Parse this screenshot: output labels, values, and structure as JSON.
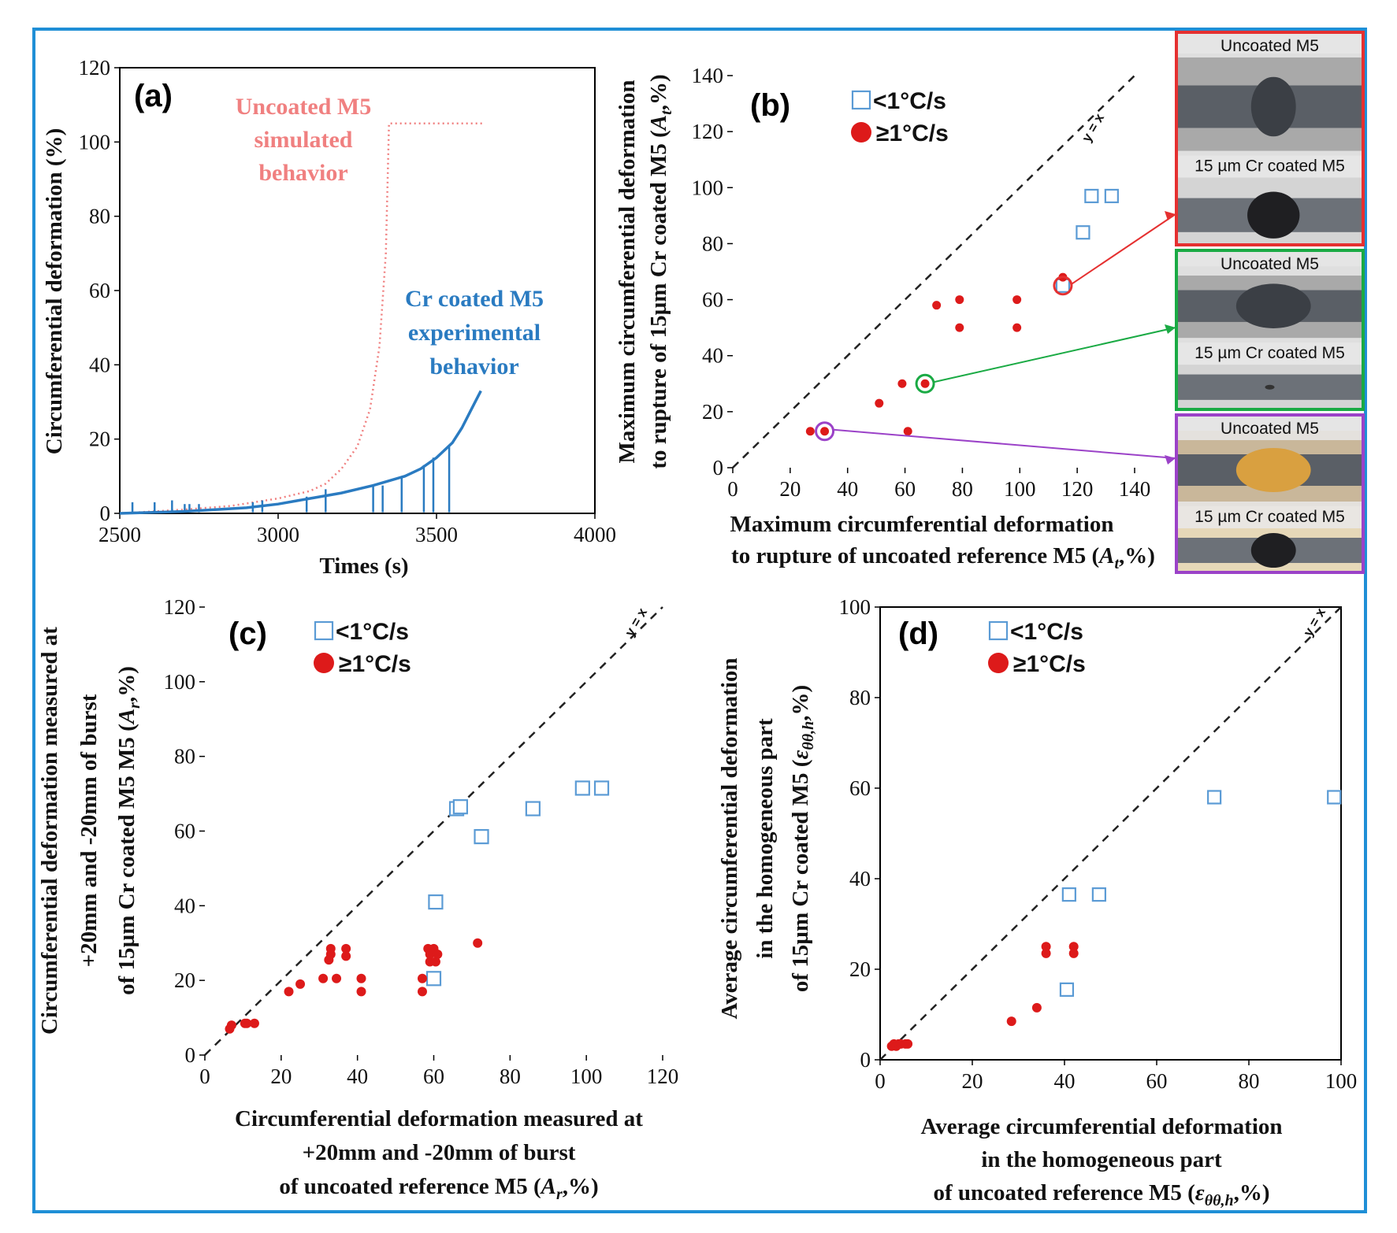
{
  "chart_data": [
    {
      "panel": "(a)",
      "type": "line",
      "xlabel": "Times (s)",
      "ylabel": "Circumferential deformation (%)",
      "xlim": [
        2500,
        4000
      ],
      "ylim": [
        0,
        120
      ],
      "xticks": [
        2500,
        3000,
        3500,
        4000
      ],
      "yticks": [
        0,
        20,
        40,
        60,
        80,
        100,
        120
      ],
      "annotations": [
        "Uncoated M5",
        "simulated",
        "behavior",
        "Cr coated M5",
        "experimental",
        "behavior"
      ],
      "series": [
        {
          "name": "Uncoated M5 simulated behavior",
          "color": "#f08080",
          "style": "dotted",
          "x": [
            2500,
            2700,
            2850,
            3000,
            3100,
            3150,
            3200,
            3250,
            3290,
            3320,
            3340,
            3350,
            3400,
            3500,
            3600,
            3650
          ],
          "y": [
            0,
            1,
            2,
            4,
            6,
            8,
            12,
            18,
            28,
            45,
            70,
            105,
            105,
            105,
            105,
            105
          ]
        },
        {
          "name": "Cr coated M5 experimental behavior",
          "color": "#2a7bc1",
          "style": "solid",
          "x": [
            2500,
            2700,
            2900,
            3000,
            3100,
            3200,
            3300,
            3400,
            3450,
            3500,
            3550,
            3580,
            3610,
            3640
          ],
          "y": [
            0,
            0.5,
            1.5,
            2.5,
            4,
            5.5,
            7.5,
            10,
            12,
            15,
            19,
            23,
            28,
            33
          ]
        },
        {
          "name": "Cr coated M5 experimental spikes",
          "color": "#2a7bc1",
          "style": "spikes",
          "x": [
            2540,
            2610,
            2665,
            2705,
            2720,
            2750,
            2920,
            2950,
            3090,
            3150,
            3300,
            3330,
            3390,
            3460,
            3490,
            3540
          ],
          "y": [
            3,
            3,
            3.5,
            2.5,
            2.5,
            2.5,
            3,
            3.5,
            4.5,
            6.5,
            7.5,
            7.5,
            10,
            13,
            15,
            18
          ]
        }
      ]
    },
    {
      "panel": "(b)",
      "type": "scatter",
      "xlabel": [
        "Maximum circumferential deformation",
        "to rupture of uncoated reference M5 (",
        "A",
        "t",
        ",%)"
      ],
      "ylabel": [
        "Maximum circumferential deformation",
        "to rupture of 15µm Cr coated M5 (",
        "A",
        "t",
        ",%)"
      ],
      "xlim": [
        0,
        140
      ],
      "ylim": [
        0,
        140
      ],
      "xticks": [
        0,
        20,
        40,
        60,
        80,
        100,
        120,
        140
      ],
      "yticks": [
        0,
        20,
        40,
        60,
        80,
        100,
        120,
        140
      ],
      "diagonal_label": "y = x",
      "legend": {
        "open": "<1°C/s",
        "filled": "≥1°C/s"
      },
      "series": [
        {
          "name": "<1°C/s",
          "marker": "open-square",
          "x": [
            122,
            125,
            132,
            115
          ],
          "y": [
            84,
            97,
            97,
            65
          ]
        },
        {
          "name": "≥1°C/s",
          "marker": "filled-circle",
          "x": [
            27,
            32,
            51,
            59,
            61,
            67,
            71,
            79,
            79,
            99,
            99,
            115
          ],
          "y": [
            13,
            13,
            23,
            30,
            13,
            30,
            58,
            60,
            50,
            60,
            50,
            68
          ]
        }
      ],
      "highlighted": [
        {
          "x": 115,
          "y": 65,
          "color": "#e53030"
        },
        {
          "x": 67,
          "y": 30,
          "color": "#1aaa44"
        },
        {
          "x": 32,
          "y": 13,
          "color": "#9b42c8"
        }
      ],
      "photos": [
        {
          "top": "Uncoated M5",
          "bottom": "15 µm Cr coated M5",
          "border": "#e53030"
        },
        {
          "top": "Uncoated M5",
          "bottom": "15 µm Cr coated M5",
          "border": "#1aaa44"
        },
        {
          "top": "Uncoated M5",
          "bottom": "15 µm Cr coated M5",
          "border": "#9b42c8"
        }
      ]
    },
    {
      "panel": "(c)",
      "type": "scatter",
      "xlabel": [
        "Circumferential deformation measured at",
        "+20mm and -20mm of burst",
        "of uncoated reference M5 (",
        "A",
        "r",
        ",%)"
      ],
      "ylabel": [
        "Circumferential deformation measured at",
        "+20mm and -20mm of burst",
        "of 15µm Cr coated M5 M5 (",
        "A",
        "r",
        ",%)"
      ],
      "xlim": [
        0,
        120
      ],
      "ylim": [
        0,
        120
      ],
      "xticks": [
        0,
        20,
        40,
        60,
        80,
        100,
        120
      ],
      "yticks": [
        0,
        20,
        40,
        60,
        80,
        100,
        120
      ],
      "diagonal_label": "y = x",
      "legend": {
        "open": "<1°C/s",
        "filled": "≥1°C/s"
      },
      "series": [
        {
          "name": "<1°C/s",
          "marker": "open-square",
          "x": [
            60,
            60.5,
            66,
            67,
            72.5,
            86,
            99,
            104
          ],
          "y": [
            20.5,
            41,
            66,
            66.5,
            58.5,
            66,
            71.5,
            71.5
          ]
        },
        {
          "name": "≥1°C/s",
          "marker": "filled-circle",
          "x": [
            6.5,
            7,
            10.5,
            11,
            13,
            22,
            25,
            31,
            32.5,
            33,
            33,
            34.5,
            37,
            37,
            41,
            41,
            57,
            57,
            58.5,
            59,
            59,
            60,
            60.5,
            61,
            71.5
          ],
          "y": [
            7,
            8,
            8.5,
            8.5,
            8.5,
            17,
            19,
            20.5,
            25.5,
            27,
            28.5,
            20.5,
            26.5,
            28.5,
            17,
            20.5,
            17,
            20.5,
            28.5,
            25,
            27,
            28.5,
            25,
            27,
            30
          ]
        }
      ]
    },
    {
      "panel": "(d)",
      "type": "scatter",
      "xlabel": [
        "Average circumferential deformation",
        "in the homogeneous part",
        "of uncoated reference M5 (",
        "ε",
        "θθ,h",
        ",%)"
      ],
      "ylabel": [
        "Average circumferential deformation",
        "in the homogeneous part",
        "of 15µm Cr coated M5 (",
        "ε",
        "θθ,h",
        ",%)"
      ],
      "xlim": [
        0,
        100
      ],
      "ylim": [
        0,
        100
      ],
      "xticks": [
        0,
        20,
        40,
        60,
        80,
        100
      ],
      "yticks": [
        0,
        20,
        40,
        60,
        80,
        100
      ],
      "diagonal_label": "y = x",
      "legend": {
        "open": "<1°C/s",
        "filled": "≥1°C/s"
      },
      "series": [
        {
          "name": "<1°C/s",
          "marker": "open-square",
          "x": [
            40.5,
            41,
            47.5,
            72.5,
            98.5
          ],
          "y": [
            15.5,
            36.5,
            36.5,
            58,
            58
          ]
        },
        {
          "name": "≥1°C/s",
          "marker": "filled-circle",
          "x": [
            2.5,
            3,
            3.5,
            4,
            4.5,
            5.5,
            6,
            28.5,
            34,
            36,
            36,
            42,
            42
          ],
          "y": [
            3,
            3.5,
            3,
            3.5,
            3.5,
            3.5,
            3.5,
            8.5,
            11.5,
            23.5,
            25,
            23.5,
            25
          ]
        }
      ]
    }
  ]
}
